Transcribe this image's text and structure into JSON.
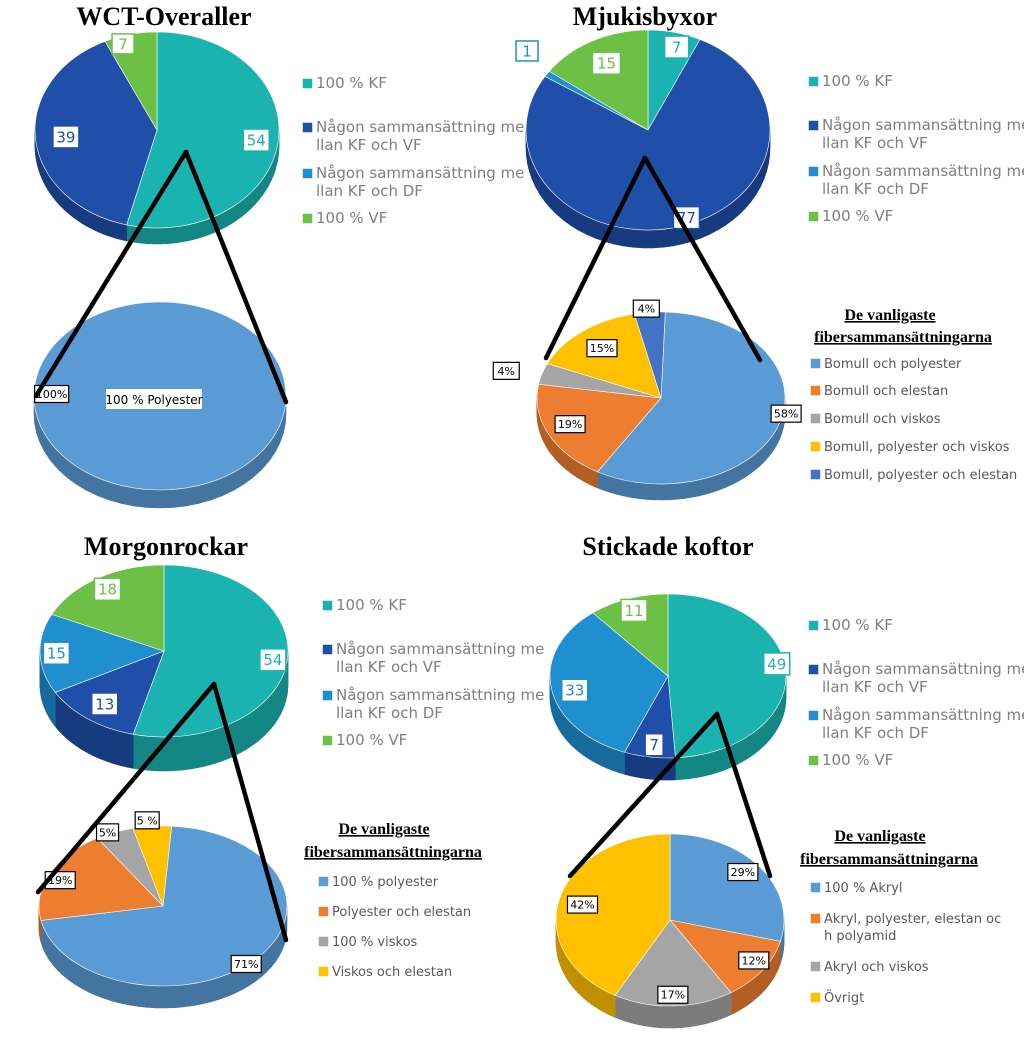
{
  "colors": {
    "kf": "#1bb3b0",
    "kfvf": "#1f4fa8",
    "kfdf": "#1f8fd0",
    "vf": "#6cc045",
    "blue": "#5b9bd5",
    "orange": "#ed7d31",
    "gray": "#a5a5a5",
    "yellow": "#ffc000",
    "darkblue": "#4472c4"
  },
  "chart_data": [
    {
      "type": "pie",
      "title": "WCT-Overaller",
      "legend": [
        "100 % KF",
        "Någon sammansättning mellan KF och VF",
        "Någon sammansättning mellan KF och DF",
        "100 % VF"
      ],
      "values": [
        54,
        39,
        0,
        7
      ],
      "labels": [
        "54",
        "39",
        "0",
        "7"
      ]
    },
    {
      "type": "pie",
      "title": "",
      "legend": [],
      "values": [
        100
      ],
      "labels": [
        "100%"
      ],
      "inner_label": "100 % Polyester"
    },
    {
      "type": "pie",
      "title": "Mjukisbyxor",
      "legend": [
        "100 % KF",
        "Någon sammansättning mellan KF och VF",
        "Någon sammansättning mellan KF och DF",
        "100 % VF"
      ],
      "values": [
        7,
        77,
        1,
        15
      ],
      "labels": [
        "7",
        "77",
        "1",
        "15"
      ]
    },
    {
      "type": "pie",
      "title": "De vanligaste fibersammansättningarna",
      "legend": [
        "Bomull och polyester",
        "Bomull och elestan",
        "Bomull och viskos",
        "Bomull, polyester och viskos",
        "Bomull, polyester och elestan"
      ],
      "values": [
        58,
        19,
        4,
        15,
        4
      ],
      "labels": [
        "58%",
        "19%",
        "4%",
        "15%",
        "4%"
      ]
    },
    {
      "type": "pie",
      "title": "Morgonrockar",
      "legend": [
        "100 % KF",
        "Någon sammansättning mellan KF och VF",
        "Någon sammansättning mellan KF och DF",
        "100 % VF"
      ],
      "values": [
        54,
        13,
        15,
        18
      ],
      "labels": [
        "54",
        "13",
        "15",
        "18"
      ]
    },
    {
      "type": "pie",
      "title": "De vanligaste fibersammansättningarna",
      "legend": [
        "100 % polyester",
        "Polyester och elestan",
        "100 % viskos",
        "Viskos och elestan"
      ],
      "values": [
        71,
        19,
        5,
        5
      ],
      "labels": [
        "71%",
        "19%",
        "5%",
        "5 %"
      ]
    },
    {
      "type": "pie",
      "title": "Stickade koftor",
      "legend": [
        "100 % KF",
        "Någon sammansättning mellan KF och VF",
        "Någon sammansättning mellan KF och DF",
        "100 % VF"
      ],
      "values": [
        49,
        7,
        33,
        11
      ],
      "labels": [
        "49",
        "7",
        "33",
        "11"
      ]
    },
    {
      "type": "pie",
      "title": "De vanligaste fibersammansättningarna",
      "legend": [
        "100 % Akryl",
        "Akryl, polyester, elestan och polyamid",
        "Akryl och viskos",
        "Övrigt"
      ],
      "values": [
        29,
        12,
        17,
        42
      ],
      "labels": [
        "29%",
        "12%",
        "17%",
        "42%"
      ]
    }
  ]
}
